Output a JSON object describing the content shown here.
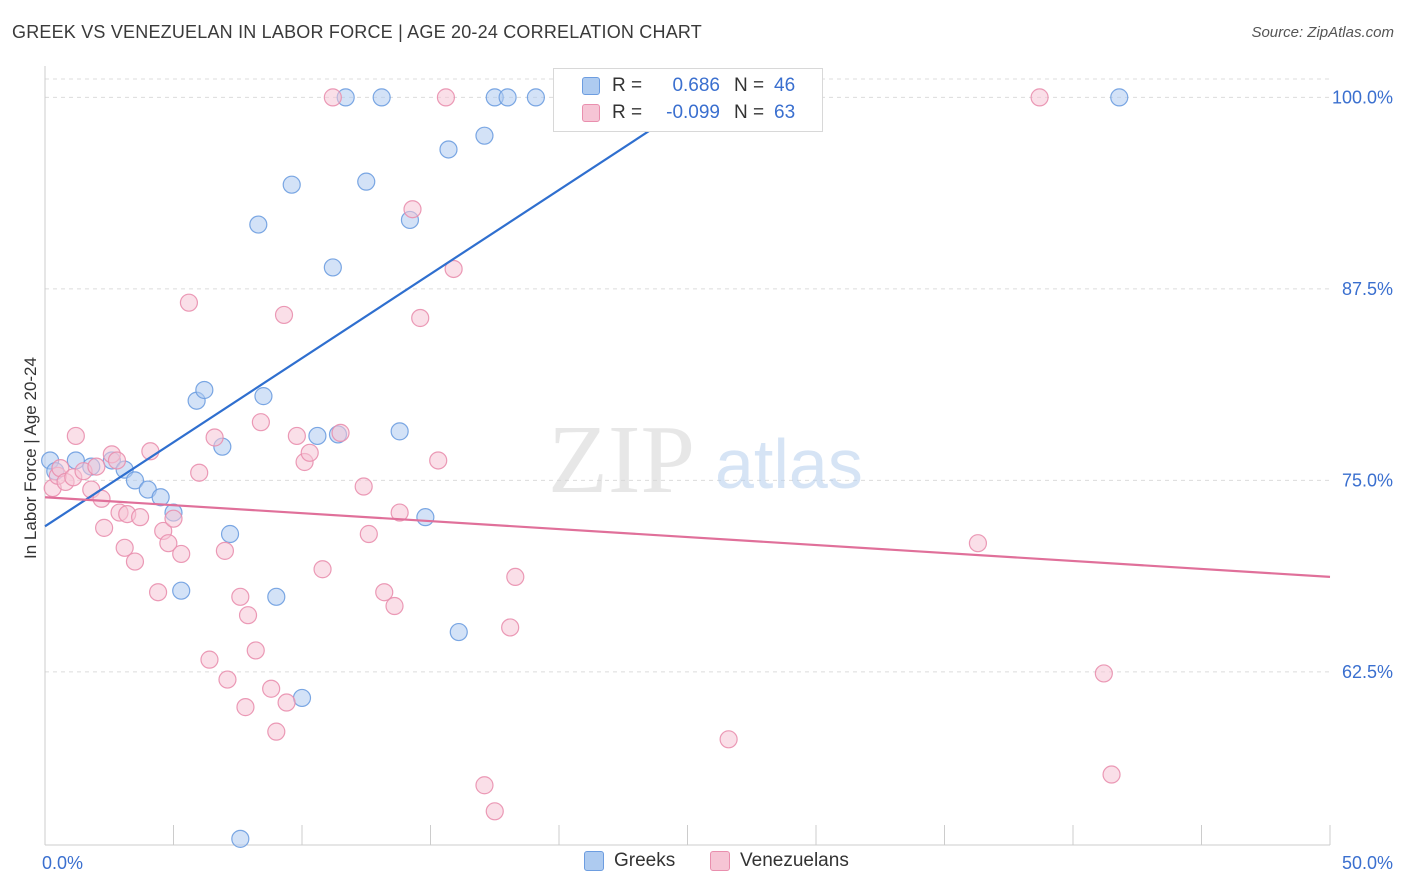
{
  "header": {
    "title": "GREEK VS VENEZUELAN IN LABOR FORCE | AGE 20-24 CORRELATION CHART",
    "source": "Source: ZipAtlas.com"
  },
  "watermark": {
    "zip": "ZIP",
    "atlas": "atlas"
  },
  "colors": {
    "greeks_fill": "#aecbf0",
    "greeks_stroke": "#6d9de0",
    "greeks_line": "#2f6fcf",
    "venezuelans_fill": "#f6c5d5",
    "venezuelans_stroke": "#e98fae",
    "venezuelans_line": "#e0709a",
    "value_text": "#3a6fcf",
    "grid": "#dcdcdc"
  },
  "stats": [
    {
      "r_label": "R =",
      "r_value": "0.686",
      "n_label": "N =",
      "n_value": "46"
    },
    {
      "r_label": "R =",
      "r_value": "-0.099",
      "n_label": "N =",
      "n_value": "63"
    }
  ],
  "legend": [
    {
      "label": "Greeks"
    },
    {
      "label": "Venezuelans"
    }
  ],
  "chart_data": {
    "type": "scatter",
    "xlabel": "",
    "ylabel": "In Labor Force | Age 20-24",
    "xlim": [
      0,
      50
    ],
    "ylim": [
      51.2,
      101.2
    ],
    "x_tick_labels": [
      "0.0%",
      "50.0%"
    ],
    "y_ticks": [
      62.5,
      75.0,
      87.5,
      100.0
    ],
    "y_tick_labels": [
      "62.5%",
      "75.0%",
      "87.5%",
      "100.0%"
    ],
    "grid": true,
    "legend_position": "bottom-center",
    "series": [
      {
        "name": "Greeks",
        "trend": {
          "x": [
            0,
            25.5
          ],
          "y": [
            72.0,
            100.0
          ]
        },
        "points": [
          [
            0.2,
            76.3
          ],
          [
            0.4,
            75.6
          ],
          [
            1.2,
            76.3
          ],
          [
            1.8,
            75.9
          ],
          [
            2.6,
            76.3
          ],
          [
            3.1,
            75.7
          ],
          [
            3.5,
            75.0
          ],
          [
            4.0,
            74.4
          ],
          [
            4.5,
            73.9
          ],
          [
            5.0,
            72.9
          ],
          [
            5.3,
            67.8
          ],
          [
            5.9,
            80.2
          ],
          [
            6.2,
            80.9
          ],
          [
            6.9,
            77.2
          ],
          [
            7.2,
            71.5
          ],
          [
            7.6,
            51.6
          ],
          [
            8.3,
            91.7
          ],
          [
            8.5,
            80.5
          ],
          [
            9.0,
            67.4
          ],
          [
            9.6,
            94.3
          ],
          [
            10.0,
            60.8
          ],
          [
            10.6,
            77.9
          ],
          [
            11.2,
            88.9
          ],
          [
            11.4,
            78.0
          ],
          [
            11.7,
            100.0
          ],
          [
            12.5,
            94.5
          ],
          [
            13.1,
            100.0
          ],
          [
            13.8,
            78.2
          ],
          [
            14.2,
            92.0
          ],
          [
            14.8,
            72.6
          ],
          [
            15.7,
            96.6
          ],
          [
            16.1,
            65.1
          ],
          [
            17.1,
            97.5
          ],
          [
            17.5,
            100.0
          ],
          [
            18.0,
            100.0
          ],
          [
            19.1,
            100.0
          ],
          [
            20.7,
            100.0
          ],
          [
            21.6,
            100.0
          ],
          [
            22.0,
            100.0
          ],
          [
            23.0,
            100.0
          ],
          [
            23.4,
            100.0
          ],
          [
            24.3,
            100.0
          ],
          [
            25.0,
            100.0
          ],
          [
            25.5,
            100.0
          ],
          [
            26.0,
            100.0
          ],
          [
            41.8,
            100.0
          ]
        ]
      },
      {
        "name": "Venezuelans",
        "trend": {
          "x": [
            0,
            50
          ],
          "y": [
            73.9,
            68.7
          ]
        },
        "points": [
          [
            0.3,
            74.5
          ],
          [
            0.5,
            75.3
          ],
          [
            0.6,
            75.8
          ],
          [
            0.8,
            74.9
          ],
          [
            1.1,
            75.2
          ],
          [
            1.2,
            77.9
          ],
          [
            1.5,
            75.6
          ],
          [
            1.8,
            74.4
          ],
          [
            2.0,
            75.9
          ],
          [
            2.2,
            73.8
          ],
          [
            2.3,
            71.9
          ],
          [
            2.6,
            76.7
          ],
          [
            2.8,
            76.3
          ],
          [
            2.9,
            72.9
          ],
          [
            3.1,
            70.6
          ],
          [
            3.2,
            72.8
          ],
          [
            3.5,
            69.7
          ],
          [
            3.7,
            72.6
          ],
          [
            4.1,
            76.9
          ],
          [
            4.4,
            67.7
          ],
          [
            4.6,
            71.7
          ],
          [
            4.8,
            70.9
          ],
          [
            5.0,
            72.5
          ],
          [
            5.3,
            70.2
          ],
          [
            5.6,
            86.6
          ],
          [
            6.0,
            75.5
          ],
          [
            6.4,
            63.3
          ],
          [
            6.6,
            77.8
          ],
          [
            7.0,
            70.4
          ],
          [
            7.1,
            62.0
          ],
          [
            7.6,
            67.4
          ],
          [
            7.8,
            60.2
          ],
          [
            7.9,
            66.2
          ],
          [
            8.2,
            63.9
          ],
          [
            8.4,
            78.8
          ],
          [
            8.8,
            61.4
          ],
          [
            9.0,
            58.6
          ],
          [
            9.3,
            85.8
          ],
          [
            9.4,
            60.5
          ],
          [
            9.8,
            77.9
          ],
          [
            10.1,
            76.2
          ],
          [
            10.3,
            76.8
          ],
          [
            10.8,
            69.2
          ],
          [
            11.2,
            100.0
          ],
          [
            11.5,
            78.1
          ],
          [
            12.4,
            74.6
          ],
          [
            12.6,
            71.5
          ],
          [
            13.2,
            67.7
          ],
          [
            13.6,
            66.8
          ],
          [
            13.8,
            72.9
          ],
          [
            14.3,
            92.7
          ],
          [
            14.6,
            85.6
          ],
          [
            15.3,
            76.3
          ],
          [
            15.6,
            100.0
          ],
          [
            15.9,
            88.8
          ],
          [
            17.1,
            55.1
          ],
          [
            17.5,
            53.4
          ],
          [
            18.1,
            65.4
          ],
          [
            18.3,
            68.7
          ],
          [
            26.6,
            58.1
          ],
          [
            36.3,
            70.9
          ],
          [
            38.7,
            100.0
          ],
          [
            41.2,
            62.4
          ],
          [
            41.5,
            55.8
          ]
        ]
      }
    ]
  }
}
